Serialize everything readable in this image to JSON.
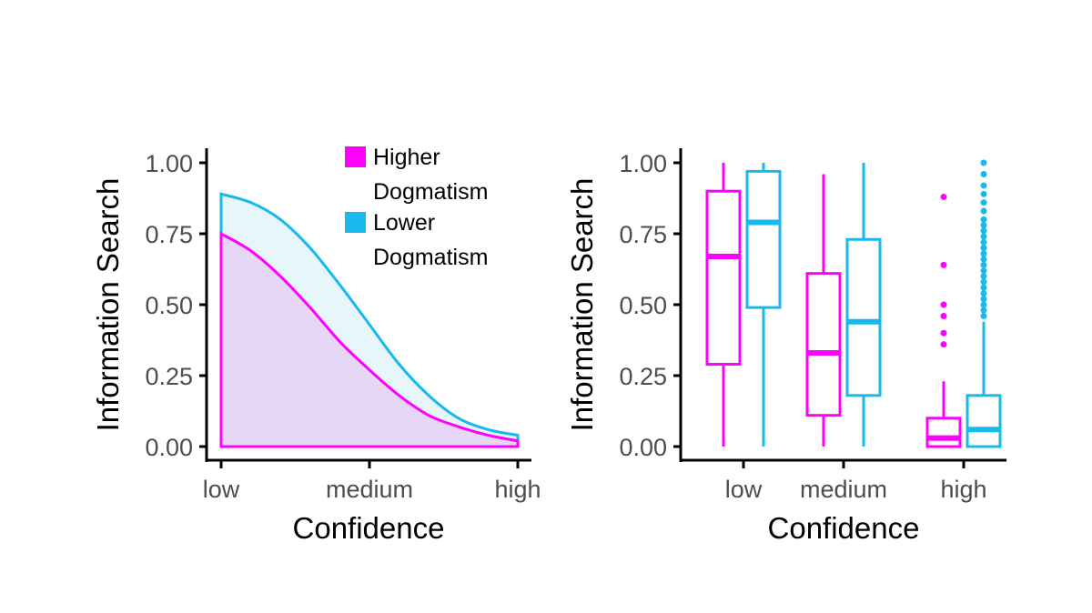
{
  "colors": {
    "higher": "#ff00ff",
    "lower": "#18b9ec",
    "higher_fill": "#e6d7f7",
    "lower_fill": "#e6f6fb",
    "axis": "#000000"
  },
  "chart_data": [
    {
      "type": "area",
      "xlabel": "Confidence",
      "ylabel": "Information Search",
      "x_ticks": [
        "low",
        "medium",
        "high"
      ],
      "ylim": [
        0,
        1
      ],
      "y_ticks": [
        "0.00",
        "0.25",
        "0.50",
        "0.75",
        "1.00"
      ],
      "grid": false,
      "legend_placement": "top-right",
      "legend": [
        {
          "label_lines": [
            "Higher",
            "Dogmatism"
          ]
        },
        {
          "label_lines": [
            "Lower",
            "Dogmatism"
          ]
        }
      ],
      "series": [
        {
          "name": "Higher Dogmatism",
          "x": [
            0,
            0.1,
            0.2,
            0.3,
            0.4,
            0.5,
            0.6,
            0.7,
            0.8,
            0.9,
            1.0
          ],
          "values": [
            0.75,
            0.69,
            0.6,
            0.49,
            0.37,
            0.27,
            0.18,
            0.11,
            0.07,
            0.04,
            0.02
          ]
        },
        {
          "name": "Lower Dogmatism",
          "x": [
            0,
            0.1,
            0.2,
            0.3,
            0.4,
            0.5,
            0.6,
            0.7,
            0.8,
            0.9,
            1.0
          ],
          "values": [
            0.89,
            0.86,
            0.8,
            0.7,
            0.57,
            0.43,
            0.29,
            0.18,
            0.1,
            0.06,
            0.04
          ]
        }
      ]
    },
    {
      "type": "box",
      "xlabel": "Confidence",
      "ylabel": "Information Search",
      "categories": [
        "low",
        "medium",
        "high"
      ],
      "ylim": [
        0,
        1
      ],
      "y_ticks": [
        "0.00",
        "0.25",
        "0.50",
        "0.75",
        "1.00"
      ],
      "grid": false,
      "series": [
        {
          "name": "Higher Dogmatism",
          "boxes": [
            {
              "min": 0.0,
              "q1": 0.29,
              "median": 0.67,
              "q3": 0.9,
              "max": 1.0,
              "outliers": []
            },
            {
              "min": 0.0,
              "q1": 0.11,
              "median": 0.33,
              "q3": 0.61,
              "max": 0.96,
              "outliers": []
            },
            {
              "min": 0.0,
              "q1": 0.0,
              "median": 0.03,
              "q3": 0.1,
              "max": 0.23,
              "outliers": [
                0.36,
                0.4,
                0.46,
                0.5,
                0.64,
                0.88
              ]
            }
          ]
        },
        {
          "name": "Lower Dogmatism",
          "boxes": [
            {
              "min": 0.0,
              "q1": 0.49,
              "median": 0.79,
              "q3": 0.97,
              "max": 1.0,
              "outliers": []
            },
            {
              "min": 0.0,
              "q1": 0.18,
              "median": 0.44,
              "q3": 0.73,
              "max": 1.0,
              "outliers": []
            },
            {
              "min": 0.0,
              "q1": 0.0,
              "median": 0.06,
              "q3": 0.18,
              "max": 0.44,
              "outliers": [
                0.46,
                0.48,
                0.5,
                0.52,
                0.54,
                0.56,
                0.58,
                0.6,
                0.62,
                0.64,
                0.66,
                0.68,
                0.7,
                0.72,
                0.74,
                0.76,
                0.78,
                0.8,
                0.83,
                0.86,
                0.89,
                0.92,
                0.96,
                1.0
              ]
            }
          ]
        }
      ]
    }
  ]
}
